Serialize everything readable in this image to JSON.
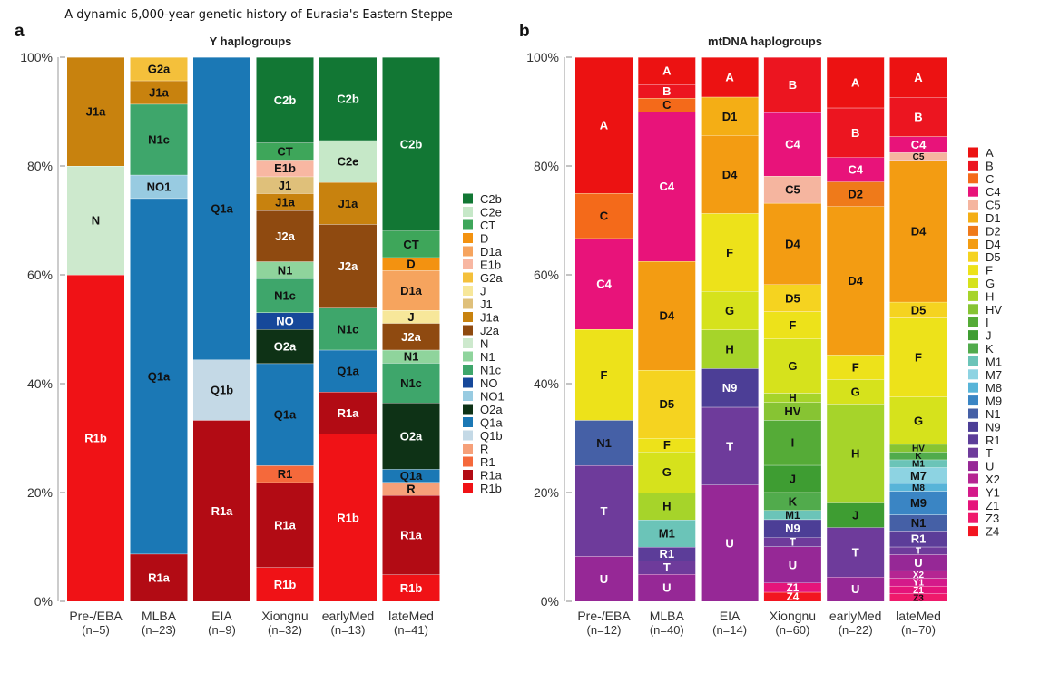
{
  "figure_title": "A dynamic 6,000-year genetic history of Eurasia's Eastern Steppe",
  "chart_data": [
    {
      "panel": "a",
      "type": "bar",
      "stacked": true,
      "title": "Y haplogroups",
      "ylim": [
        0,
        100
      ],
      "yticks": [
        "0%",
        "20%",
        "40%",
        "60%",
        "80%",
        "100%"
      ],
      "categories": [
        "Pre-/EBA",
        "MLBA",
        "EIA",
        "Xiongnu",
        "earlyMed",
        "lateMed"
      ],
      "sample_sizes": [
        "(n=5)",
        "(n=23)",
        "(n=9)",
        "(n=32)",
        "(n=13)",
        "(n=41)"
      ],
      "legend": [
        "C2b",
        "C2e",
        "CT",
        "D",
        "D1a",
        "E1b",
        "G2a",
        "J",
        "J1",
        "J1a",
        "J2a",
        "N",
        "N1",
        "N1c",
        "NO",
        "NO1",
        "O2a",
        "Q1a",
        "Q1b",
        "R",
        "R1",
        "R1a",
        "R1b"
      ],
      "colors": {
        "C2b": "#127734",
        "C2e": "#c6e8c8",
        "CT": "#3ea65a",
        "D": "#f39210",
        "D1a": "#f6a45e",
        "E1b": "#f8b7a2",
        "G2a": "#f4c03b",
        "J": "#f7e79a",
        "J1": "#dfc07a",
        "J1a": "#c8820e",
        "J2a": "#8f4a10",
        "N": "#cde9cd",
        "N1": "#8fd49c",
        "N1c": "#3ea66b",
        "NO": "#16489a",
        "NO1": "#98cbe1",
        "O2a": "#0e3216",
        "Q1a": "#1b78b5",
        "Q1b": "#c4d9e6",
        "R": "#f6a079",
        "R1": "#f5693b",
        "R1a": "#b20b14",
        "R1b": "#f01216"
      },
      "stacks": [
        [
          {
            "label": "R1b",
            "value": 60
          },
          {
            "label": "N",
            "value": 20
          },
          {
            "label": "J1a",
            "value": 20
          }
        ],
        [
          {
            "label": "R1a",
            "value": 8.7
          },
          {
            "label": "Q1a",
            "value": 65.2
          },
          {
            "label": "NO1",
            "value": 4.3
          },
          {
            "label": "N1c",
            "value": 13
          },
          {
            "label": "J1a",
            "value": 4.3
          },
          {
            "label": "G2a",
            "value": 4.3
          }
        ],
        [
          {
            "label": "R1a",
            "value": 33.3
          },
          {
            "label": "Q1b",
            "value": 11.1
          },
          {
            "label": "Q1a",
            "value": 55.6
          }
        ],
        [
          {
            "label": "R1b",
            "value": 6.25
          },
          {
            "label": "R1a",
            "value": 15.6
          },
          {
            "label": "R1",
            "value": 3.1
          },
          {
            "label": "Q1a",
            "value": 18.75
          },
          {
            "label": "O2a",
            "value": 6.25
          },
          {
            "label": "NO",
            "value": 3.1
          },
          {
            "label": "N1c",
            "value": 6.25
          },
          {
            "label": "N1",
            "value": 3.1
          },
          {
            "label": "J2a",
            "value": 9.4
          },
          {
            "label": "J1a",
            "value": 3.1
          },
          {
            "label": "J1",
            "value": 3.1
          },
          {
            "label": "E1b",
            "value": 3.1
          },
          {
            "label": "CT",
            "value": 3.1
          },
          {
            "label": "C2b",
            "value": 15.75
          }
        ],
        [
          {
            "label": "R1b",
            "value": 30.8
          },
          {
            "label": "R1a",
            "value": 7.7
          },
          {
            "label": "Q1a",
            "value": 7.7
          },
          {
            "label": "N1c",
            "value": 7.7
          },
          {
            "label": "J2a",
            "value": 15.4
          },
          {
            "label": "J1a",
            "value": 7.7
          },
          {
            "label": "C2e",
            "value": 7.7
          },
          {
            "label": "C2b",
            "value": 15.3
          }
        ],
        [
          {
            "label": "R1b",
            "value": 4.9
          },
          {
            "label": "R1a",
            "value": 14.6
          },
          {
            "label": "R",
            "value": 2.4
          },
          {
            "label": "Q1a",
            "value": 2.4
          },
          {
            "label": "O2a",
            "value": 12.2
          },
          {
            "label": "N1c",
            "value": 7.3
          },
          {
            "label": "N1",
            "value": 2.4
          },
          {
            "label": "J2a",
            "value": 4.9
          },
          {
            "label": "J",
            "value": 2.4
          },
          {
            "label": "D1a",
            "value": 7.3
          },
          {
            "label": "D",
            "value": 2.4
          },
          {
            "label": "CT",
            "value": 4.9
          },
          {
            "label": "C2b",
            "value": 31.9
          }
        ]
      ]
    },
    {
      "panel": "b",
      "type": "bar",
      "stacked": true,
      "title": "mtDNA haplogroups",
      "ylim": [
        0,
        100
      ],
      "yticks": [
        "0%",
        "20%",
        "40%",
        "60%",
        "80%",
        "100%"
      ],
      "categories": [
        "Pre-/EBA",
        "MLBA",
        "EIA",
        "Xiongnu",
        "earlyMed",
        "lateMed"
      ],
      "sample_sizes": [
        "(n=12)",
        "(n=40)",
        "(n=14)",
        "(n=60)",
        "(n=22)",
        "(n=70)"
      ],
      "legend": [
        "A",
        "B",
        "C",
        "C4",
        "C5",
        "D1",
        "D2",
        "D4",
        "D5",
        "F",
        "G",
        "H",
        "HV",
        "I",
        "J",
        "K",
        "M1",
        "M7",
        "M8",
        "M9",
        "N1",
        "N9",
        "R1",
        "T",
        "U",
        "X2",
        "Y1",
        "Z1",
        "Z3",
        "Z4"
      ],
      "colors": {
        "A": "#ec1212",
        "B": "#ec1520",
        "C": "#f46a1a",
        "C4": "#e8137a",
        "C5": "#f5b59f",
        "D1": "#f4ae15",
        "D2": "#ef7a1a",
        "D4": "#f39c12",
        "D5": "#f5d320",
        "F": "#ede21a",
        "G": "#d6e21c",
        "H": "#a6d42a",
        "HV": "#87c433",
        "I": "#55ab37",
        "J": "#3e9d32",
        "K": "#51ab4c",
        "M1": "#6bc4b8",
        "M7": "#8dd3e2",
        "M8": "#58b4d8",
        "M9": "#3a85c4",
        "N1": "#4560a6",
        "N9": "#4c3e96",
        "R1": "#5c3d99",
        "T": "#6e3b9b",
        "U": "#962896",
        "X2": "#b52592",
        "Y1": "#d41a8a",
        "Z1": "#e5147a",
        "Z3": "#ef1a6b",
        "Z4": "#f21520"
      },
      "stacks": [
        [
          {
            "label": "U",
            "value": 8.3
          },
          {
            "label": "T",
            "value": 16.7
          },
          {
            "label": "N1",
            "value": 8.3
          },
          {
            "label": "F",
            "value": 16.7
          },
          {
            "label": "C4",
            "value": 16.7
          },
          {
            "label": "C",
            "value": 8.3
          },
          {
            "label": "A",
            "value": 25
          }
        ],
        [
          {
            "label": "U",
            "value": 5
          },
          {
            "label": "T",
            "value": 2.5
          },
          {
            "label": "R1",
            "value": 2.5
          },
          {
            "label": "M1",
            "value": 5
          },
          {
            "label": "H",
            "value": 5
          },
          {
            "label": "G",
            "value": 7.5
          },
          {
            "label": "F",
            "value": 2.5
          },
          {
            "label": "D5",
            "value": 12.5
          },
          {
            "label": "D4",
            "value": 20
          },
          {
            "label": "C4",
            "value": 27.5
          },
          {
            "label": "C",
            "value": 2.5
          },
          {
            "label": "B",
            "value": 2.5
          },
          {
            "label": "A",
            "value": 5
          }
        ],
        [
          {
            "label": "U",
            "value": 21.4
          },
          {
            "label": "T",
            "value": 14.3
          },
          {
            "label": "N9",
            "value": 7.1
          },
          {
            "label": "H",
            "value": 7.1
          },
          {
            "label": "G",
            "value": 7.1
          },
          {
            "label": "F",
            "value": 14.3
          },
          {
            "label": "D4",
            "value": 14.3
          },
          {
            "label": "D1",
            "value": 7.1
          },
          {
            "label": "A",
            "value": 7.3
          }
        ],
        [
          {
            "label": "Z4",
            "value": 1.7
          },
          {
            "label": "Z1",
            "value": 1.7
          },
          {
            "label": "U",
            "value": 6.7
          },
          {
            "label": "T",
            "value": 1.7
          },
          {
            "label": "N9",
            "value": 3.3
          },
          {
            "label": "M1",
            "value": 1.7
          },
          {
            "label": "K",
            "value": 3.3
          },
          {
            "label": "J",
            "value": 5
          },
          {
            "label": "I",
            "value": 8.3
          },
          {
            "label": "HV",
            "value": 3.3
          },
          {
            "label": "H",
            "value": 1.7
          },
          {
            "label": "G",
            "value": 10
          },
          {
            "label": "F",
            "value": 5
          },
          {
            "label": "D5",
            "value": 5
          },
          {
            "label": "D4",
            "value": 15
          },
          {
            "label": "C5",
            "value": 5
          },
          {
            "label": "C4",
            "value": 11.7
          },
          {
            "label": "B",
            "value": 10.2
          }
        ],
        [
          {
            "label": "U",
            "value": 4.5
          },
          {
            "label": "T",
            "value": 9.1
          },
          {
            "label": "J",
            "value": 4.5
          },
          {
            "label": "H",
            "value": 18.2
          },
          {
            "label": "G",
            "value": 4.5
          },
          {
            "label": "F",
            "value": 4.5
          },
          {
            "label": "D4",
            "value": 27.3
          },
          {
            "label": "D2",
            "value": 4.5
          },
          {
            "label": "C4",
            "value": 4.5
          },
          {
            "label": "B",
            "value": 9.1
          },
          {
            "label": "A",
            "value": 9.3
          }
        ],
        [
          {
            "label": "Z3",
            "value": 1.4
          },
          {
            "label": "Z1",
            "value": 1.4
          },
          {
            "label": "Y1",
            "value": 1.4
          },
          {
            "label": "X2",
            "value": 1.4
          },
          {
            "label": "U",
            "value": 2.9
          },
          {
            "label": "T",
            "value": 1.4
          },
          {
            "label": "R1",
            "value": 2.9
          },
          {
            "label": "N1",
            "value": 2.9
          },
          {
            "label": "M9",
            "value": 4.3
          },
          {
            "label": "M8",
            "value": 1.4
          },
          {
            "label": "M7",
            "value": 2.9
          },
          {
            "label": "M1",
            "value": 1.4
          },
          {
            "label": "K",
            "value": 1.4
          },
          {
            "label": "HV",
            "value": 1.4
          },
          {
            "label": "G",
            "value": 8.6
          },
          {
            "label": "F",
            "value": 14.3
          },
          {
            "label": "D5",
            "value": 2.9
          },
          {
            "label": "D4",
            "value": 25.7
          },
          {
            "label": "C5",
            "value": 1.4
          },
          {
            "label": "C4",
            "value": 2.9
          },
          {
            "label": "B",
            "value": 7.1
          },
          {
            "label": "A",
            "value": 7.3
          }
        ]
      ]
    }
  ]
}
